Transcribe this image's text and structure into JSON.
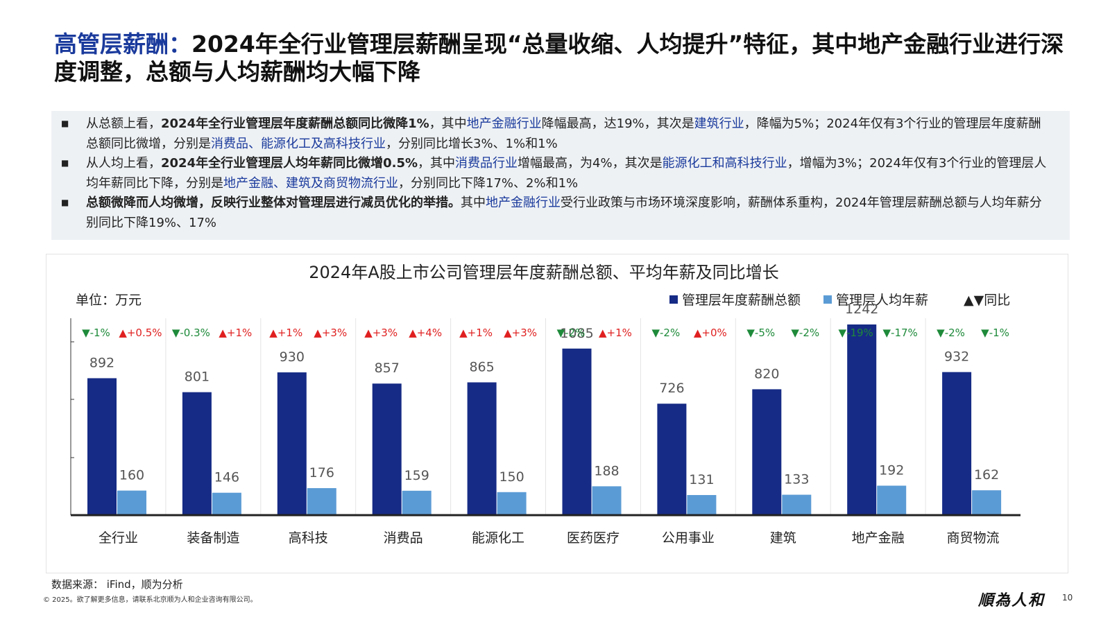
{
  "title": {
    "highlight": "高管层薪酬：",
    "rest": "2024年全行业管理层薪酬呈现“总量收缩、人均提升”特征，其中地产金融行业进行深度调整，总额与人均薪酬均大幅下降"
  },
  "bullets": [
    {
      "segments": [
        {
          "t": "从总额上看，",
          "s": "n"
        },
        {
          "t": "2024年全行业管理层年度薪酬总额同比微降1%",
          "s": "b"
        },
        {
          "t": "，其中",
          "s": "n"
        },
        {
          "t": "地产金融行业",
          "s": "l"
        },
        {
          "t": "降幅最高，达19%，其次是",
          "s": "n"
        },
        {
          "t": "建筑行业",
          "s": "l"
        },
        {
          "t": "，降幅为5%；2024年仅有3个行业的管理层年度薪酬总额同比微增，分别是",
          "s": "n"
        },
        {
          "t": "消费品、能源化工及高科技行业",
          "s": "l"
        },
        {
          "t": "，分别同比增长3%、1%和1%",
          "s": "n"
        }
      ]
    },
    {
      "segments": [
        {
          "t": "从人均上看，",
          "s": "n"
        },
        {
          "t": "2024年全行业管理层人均年薪同比微增0.5%",
          "s": "b"
        },
        {
          "t": "，其中",
          "s": "n"
        },
        {
          "t": "消费品行业",
          "s": "l"
        },
        {
          "t": "增幅最高，为4%，其次是",
          "s": "n"
        },
        {
          "t": "能源化工和高科技行业",
          "s": "l"
        },
        {
          "t": "，增幅为3%；2024年仅有3个行业的管理层人均年薪同比下降，分别是",
          "s": "n"
        },
        {
          "t": "地产金融、建筑及商贸物流行业",
          "s": "l"
        },
        {
          "t": "，分别同比下降17%、2%和1%",
          "s": "n"
        }
      ]
    },
    {
      "segments": [
        {
          "t": "总额微降而人均微增，反映行业整体对管理层进行减员优化的举措。",
          "s": "b"
        },
        {
          "t": "其中",
          "s": "n"
        },
        {
          "t": "地产金融行业",
          "s": "l"
        },
        {
          "t": "受行业政策与市场环境深度影响，薪酬体系重构，2024年管理层薪酬总额与人均年薪分别同比下降19%、17%",
          "s": "n"
        }
      ]
    }
  ],
  "chart_data": {
    "type": "bar",
    "title": "2024年A股上市公司管理层年度薪酬总额、平均年薪及同比增长",
    "unit_label": "单位：万元",
    "legend": [
      "管理层年度薪酬总额",
      "管理层人均年薪",
      "▲▼同比"
    ],
    "categories": [
      "全行业",
      "装备制造",
      "高科技",
      "消费品",
      "能源化工",
      "医药医疗",
      "公用事业",
      "建筑",
      "地产金融",
      "商贸物流"
    ],
    "series": [
      {
        "name": "管理层年度薪酬总额",
        "color": "#162b85",
        "values": [
          892,
          801,
          930,
          857,
          865,
          1085,
          726,
          820,
          1242,
          932
        ]
      },
      {
        "name": "管理层人均年薪",
        "color": "#5b9bd5",
        "values": [
          160,
          146,
          176,
          159,
          150,
          188,
          131,
          133,
          192,
          162
        ]
      }
    ],
    "yoy": [
      [
        "▼-1%",
        "▲+0.5%"
      ],
      [
        "▼-0.3%",
        "▲+1%"
      ],
      [
        "▲+1%",
        "▲+3%"
      ],
      [
        "▲+3%",
        "▲+4%"
      ],
      [
        "▲+1%",
        "▲+3%"
      ],
      [
        "▼-2%",
        "▲+1%"
      ],
      [
        "▼-2%",
        "▲+0%"
      ],
      [
        "▼-5%",
        "▼-2%"
      ],
      [
        "▼-19%",
        "▼-17%"
      ],
      [
        "▼-2%",
        "▼-1%"
      ]
    ],
    "up_color": "#e02020",
    "down_color": "#1e8a3a",
    "ylim": [
      0,
      1400
    ],
    "grid": false
  },
  "footer": {
    "source": "数据来源： iFind，顺为分析",
    "copyright": "© 2025。欲了解更多信息，请联系北京顺为人和企业咨询有限公司。",
    "logo": "順為人和",
    "page": "10"
  }
}
